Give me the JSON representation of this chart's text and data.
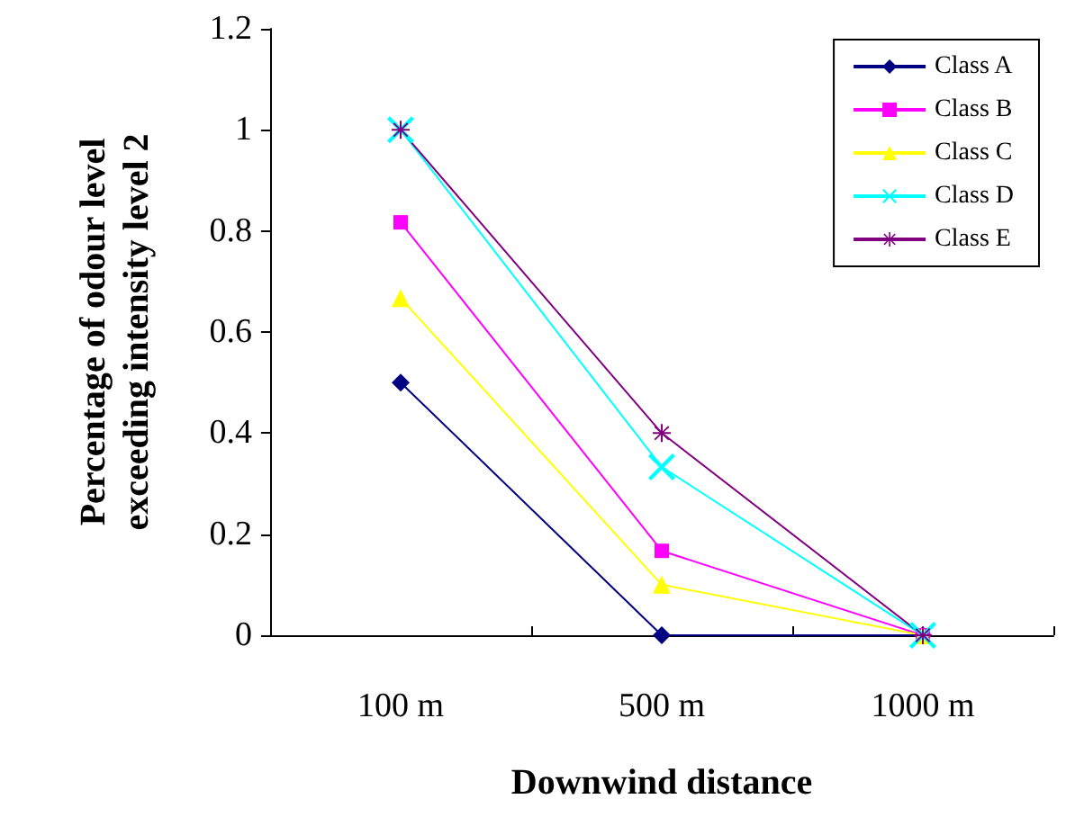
{
  "chart_data": {
    "type": "line",
    "xlabel": "Downwind distance",
    "ylabel": "Percentage of odour level exceeding intensity level 2",
    "categories": [
      "100 m",
      "500 m",
      "1000 m"
    ],
    "series": [
      {
        "name": "Class A",
        "color": "#000080",
        "marker": "diamond",
        "values": [
          0.5,
          0,
          0
        ]
      },
      {
        "name": "Class B",
        "color": "#ff00ff",
        "marker": "square",
        "values": [
          0.817,
          0.167,
          0
        ]
      },
      {
        "name": "Class C",
        "color": "#ffff00",
        "marker": "triangle",
        "values": [
          0.667,
          0.1,
          0
        ]
      },
      {
        "name": "Class D",
        "color": "#00ffff",
        "marker": "cross",
        "values": [
          1,
          0.333,
          0
        ]
      },
      {
        "name": "Class E",
        "color": "#800080",
        "marker": "star",
        "values": [
          1,
          0.4,
          0
        ]
      }
    ],
    "ylim": [
      0,
      1.2
    ],
    "yticks": [
      0,
      0.2,
      0.4,
      0.6,
      0.8,
      1,
      1.2
    ],
    "grid": false,
    "legend": "top right",
    "line_style": "solid"
  }
}
